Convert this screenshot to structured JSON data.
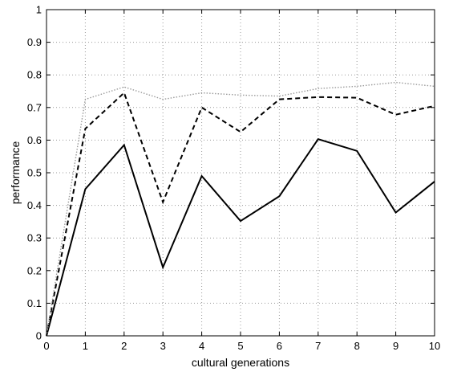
{
  "chart_data": {
    "type": "line",
    "title": "",
    "xlabel": "cultural generations",
    "ylabel": "performance",
    "xlim": [
      0,
      10
    ],
    "ylim": [
      0,
      1
    ],
    "grid": true,
    "x": [
      0,
      1,
      2,
      3,
      4,
      5,
      6,
      7,
      8,
      9,
      10
    ],
    "xticks": [
      "0",
      "1",
      "2",
      "3",
      "4",
      "5",
      "6",
      "7",
      "8",
      "9",
      "10"
    ],
    "yticks": [
      "0",
      "0.1",
      "0.2",
      "0.3",
      "0.4",
      "0.5",
      "0.6",
      "0.7",
      "0.8",
      "0.9",
      "1"
    ],
    "series": [
      {
        "style": "solid",
        "color": "#000000",
        "values": [
          0,
          0.45,
          0.585,
          0.21,
          0.49,
          0.352,
          0.428,
          0.603,
          0.567,
          0.378,
          0.473
        ]
      },
      {
        "style": "dashed",
        "color": "#000000",
        "values": [
          0,
          0.635,
          0.745,
          0.41,
          0.7,
          0.625,
          0.725,
          0.732,
          0.73,
          0.678,
          0.705
        ]
      },
      {
        "style": "dotted",
        "color": "#9a9a9a",
        "values": [
          0,
          0.725,
          0.763,
          0.725,
          0.745,
          0.738,
          0.735,
          0.758,
          0.765,
          0.777,
          0.765
        ]
      }
    ]
  }
}
